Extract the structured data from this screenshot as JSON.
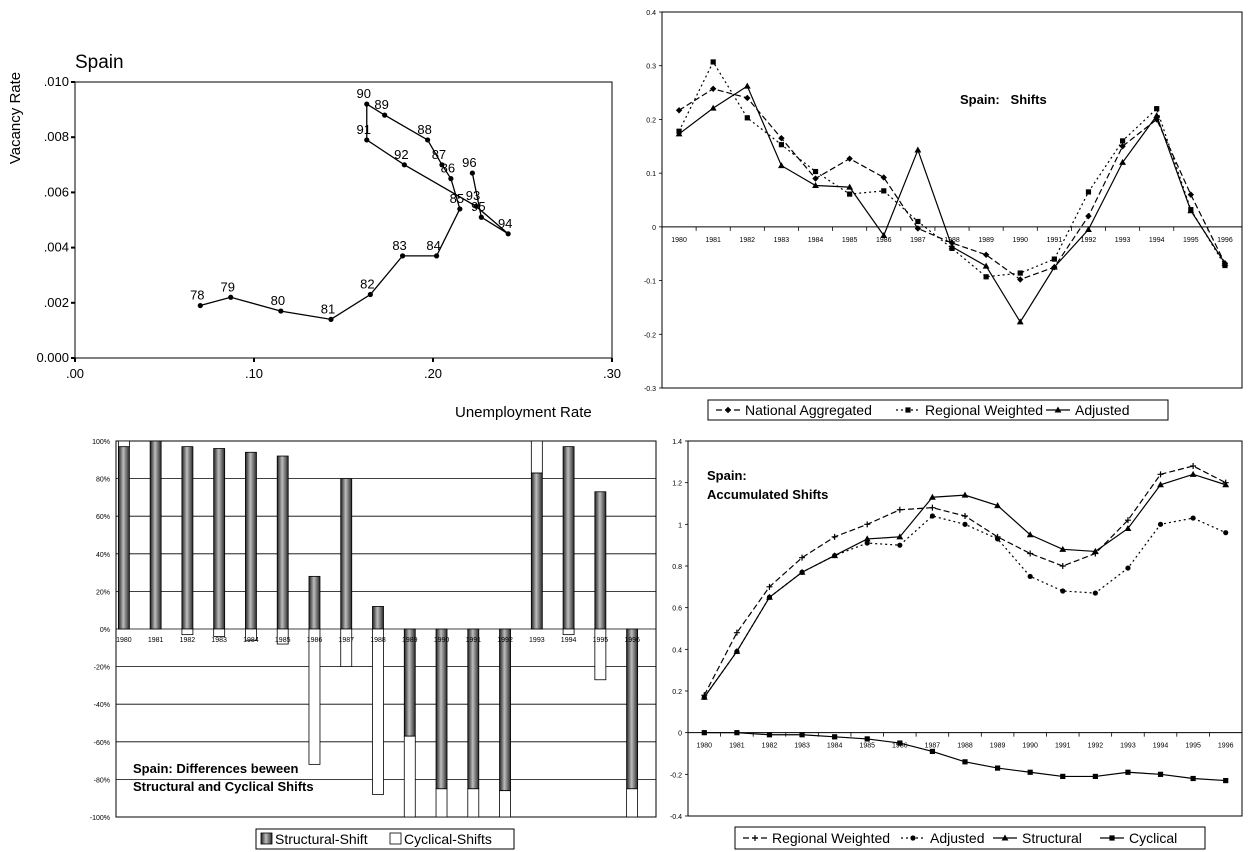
{
  "chart_data": [
    {
      "type": "scatter",
      "title": "Spain",
      "xlabel": "Unemployment Rate",
      "ylabel": "Vacancy Rate",
      "xlim": [
        0,
        0.3
      ],
      "ylim": [
        0,
        0.01
      ],
      "xticks": [
        ".00",
        ".10",
        ".20",
        ".30"
      ],
      "yticks": [
        "0.000",
        ".002",
        ".004",
        ".006",
        ".008",
        ".010"
      ],
      "connected": true,
      "points": [
        {
          "label": "78",
          "x": 0.07,
          "y": 0.0019
        },
        {
          "label": "79",
          "x": 0.087,
          "y": 0.0022
        },
        {
          "label": "80",
          "x": 0.115,
          "y": 0.0017
        },
        {
          "label": "81",
          "x": 0.143,
          "y": 0.0014
        },
        {
          "label": "82",
          "x": 0.165,
          "y": 0.0023
        },
        {
          "label": "83",
          "x": 0.183,
          "y": 0.0037
        },
        {
          "label": "84",
          "x": 0.202,
          "y": 0.0037
        },
        {
          "label": "85",
          "x": 0.215,
          "y": 0.0054
        },
        {
          "label": "86",
          "x": 0.21,
          "y": 0.0065
        },
        {
          "label": "87",
          "x": 0.205,
          "y": 0.007
        },
        {
          "label": "88",
          "x": 0.197,
          "y": 0.0079
        },
        {
          "label": "89",
          "x": 0.173,
          "y": 0.0088
        },
        {
          "label": "90",
          "x": 0.163,
          "y": 0.0092
        },
        {
          "label": "91",
          "x": 0.163,
          "y": 0.0079
        },
        {
          "label": "92",
          "x": 0.184,
          "y": 0.007
        },
        {
          "label": "93",
          "x": 0.224,
          "y": 0.0055
        },
        {
          "label": "94",
          "x": 0.242,
          "y": 0.0045
        },
        {
          "label": "95",
          "x": 0.227,
          "y": 0.0051
        },
        {
          "label": "96",
          "x": 0.222,
          "y": 0.0067
        }
      ]
    },
    {
      "type": "line",
      "title": "Spain:   Shifts",
      "x": [
        "1980",
        "1981",
        "1982",
        "1983",
        "1984",
        "1985",
        "1986",
        "1987",
        "1988",
        "1989",
        "1990",
        "1991",
        "1992",
        "1993",
        "1994",
        "1995",
        "1996"
      ],
      "ylim": [
        -0.3,
        0.4
      ],
      "yticks": [
        "-0.3",
        "-0.2",
        "-0.1",
        "0",
        "0.1",
        "0.2",
        "0.3",
        "0.4"
      ],
      "legend": "bottom",
      "series": [
        {
          "name": "National Aggregated",
          "values": [
            0.217,
            0.257,
            0.24,
            0.165,
            0.09,
            0.127,
            0.092,
            -0.003,
            -0.03,
            -0.052,
            -0.098,
            -0.075,
            0.02,
            0.15,
            0.2,
            0.06,
            -0.068
          ]
        },
        {
          "name": "Regional Weighted",
          "values": [
            0.178,
            0.307,
            0.203,
            0.153,
            0.103,
            0.061,
            0.067,
            0.01,
            -0.04,
            -0.093,
            -0.086,
            -0.06,
            0.065,
            0.16,
            0.22,
            0.032,
            -0.072
          ]
        },
        {
          "name": "Adjusted",
          "values": [
            0.173,
            0.221,
            0.262,
            0.114,
            0.077,
            0.074,
            -0.016,
            0.143,
            -0.037,
            -0.073,
            -0.177,
            -0.075,
            -0.005,
            0.12,
            0.207,
            0.03,
            -0.068
          ]
        }
      ]
    },
    {
      "type": "bar",
      "title": "Spain: Differences beween Structural and Cyclical Shifts",
      "categories": [
        "1980",
        "1981",
        "1982",
        "1983",
        "1984",
        "1985",
        "1986",
        "1987",
        "1988",
        "1989",
        "1990",
        "1991",
        "1992",
        "1993",
        "1994",
        "1995",
        "1996"
      ],
      "ylim": [
        -100,
        100
      ],
      "yticks": [
        "-100%",
        "-80%",
        "-60%",
        "-40%",
        "-20%",
        "0%",
        "20%",
        "40%",
        "60%",
        "80%",
        "100%"
      ],
      "legend": "bottom",
      "series": [
        {
          "name": "Structural-Shift",
          "values": [
            97,
            100,
            97,
            96,
            94,
            92,
            28,
            80,
            12,
            -57,
            -85,
            -85,
            -86,
            83,
            97,
            73,
            -85
          ]
        },
        {
          "name": "Cyclical-Shifts",
          "values": [
            3,
            0,
            -3,
            -4,
            -6,
            -8,
            -72,
            -20,
            -88,
            -43,
            -15,
            -15,
            -14,
            17,
            -3,
            -27,
            -15
          ]
        }
      ]
    },
    {
      "type": "line",
      "title": "Spain: Accumulated Shifts",
      "x": [
        "1980",
        "1981",
        "1982",
        "1983",
        "1984",
        "1985",
        "1986",
        "1987",
        "1988",
        "1989",
        "1990",
        "1991",
        "1992",
        "1993",
        "1994",
        "1995",
        "1996"
      ],
      "ylim": [
        -0.4,
        1.4
      ],
      "yticks": [
        "-0.4",
        "-0.2",
        "0",
        "0.2",
        "0.4",
        "0.6",
        "0.8",
        "1",
        "1.2",
        "1.4"
      ],
      "legend": "bottom",
      "series": [
        {
          "name": "Regional Weighted",
          "values": [
            0.18,
            0.48,
            0.7,
            0.84,
            0.94,
            1.0,
            1.07,
            1.08,
            1.04,
            0.94,
            0.86,
            0.8,
            0.86,
            1.02,
            1.24,
            1.28,
            1.2
          ]
        },
        {
          "name": "Adjusted",
          "values": [
            0.17,
            0.39,
            0.65,
            0.77,
            0.85,
            0.91,
            0.9,
            1.04,
            1.0,
            0.93,
            0.75,
            0.68,
            0.67,
            0.79,
            1.0,
            1.03,
            0.96
          ]
        },
        {
          "name": "Structural",
          "values": [
            0.17,
            0.39,
            0.65,
            0.77,
            0.85,
            0.93,
            0.94,
            1.13,
            1.14,
            1.09,
            0.95,
            0.88,
            0.87,
            0.98,
            1.19,
            1.24,
            1.19
          ]
        },
        {
          "name": "Cyclical",
          "values": [
            0.0,
            0.0,
            -0.01,
            -0.01,
            -0.02,
            -0.03,
            -0.05,
            -0.09,
            -0.14,
            -0.17,
            -0.19,
            -0.21,
            -0.21,
            -0.19,
            -0.2,
            -0.22,
            -0.23
          ]
        }
      ]
    }
  ]
}
